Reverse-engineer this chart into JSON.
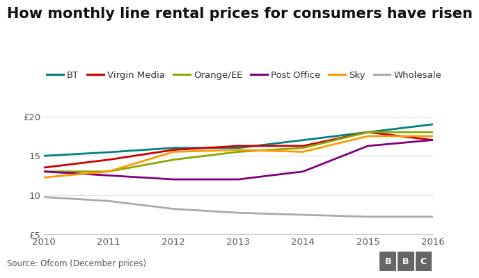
{
  "title": "How monthly line rental prices for consumers have risen",
  "source": "Source: Ofcom (December prices)",
  "years": [
    2010,
    2011,
    2012,
    2013,
    2014,
    2015,
    2016
  ],
  "series": [
    {
      "name": "BT",
      "color": "#008080",
      "values": [
        14.99,
        15.45,
        16.0,
        16.0,
        16.99,
        18.0,
        18.99
      ]
    },
    {
      "name": "Virgin Media",
      "color": "#cc0000",
      "values": [
        13.5,
        14.5,
        15.75,
        16.25,
        16.25,
        18.0,
        17.0
      ]
    },
    {
      "name": "Orange/EE",
      "color": "#88aa00",
      "values": [
        13.0,
        13.0,
        14.5,
        15.5,
        16.0,
        18.0,
        18.0
      ]
    },
    {
      "name": "Post Office",
      "color": "#800080",
      "values": [
        13.0,
        12.5,
        12.0,
        12.0,
        13.0,
        16.25,
        17.0
      ]
    },
    {
      "name": "Sky",
      "color": "#ff9900",
      "values": [
        12.25,
        13.0,
        15.5,
        15.75,
        15.5,
        17.5,
        17.5
      ]
    },
    {
      "name": "Wholesale",
      "color": "#aaaaaa",
      "values": [
        9.75,
        9.25,
        8.25,
        7.75,
        7.5,
        7.25,
        7.25
      ]
    }
  ],
  "ylim": [
    5,
    20.5
  ],
  "yticks": [
    5,
    10,
    15,
    20
  ],
  "ytick_labels": [
    "£5",
    "10",
    "15",
    "£20"
  ],
  "background_color": "#ffffff",
  "grid_color": "#dddddd",
  "title_fontsize": 15,
  "legend_fontsize": 9.5,
  "axis_fontsize": 9.5,
  "source_fontsize": 8.5,
  "bbc_color": "#666666"
}
